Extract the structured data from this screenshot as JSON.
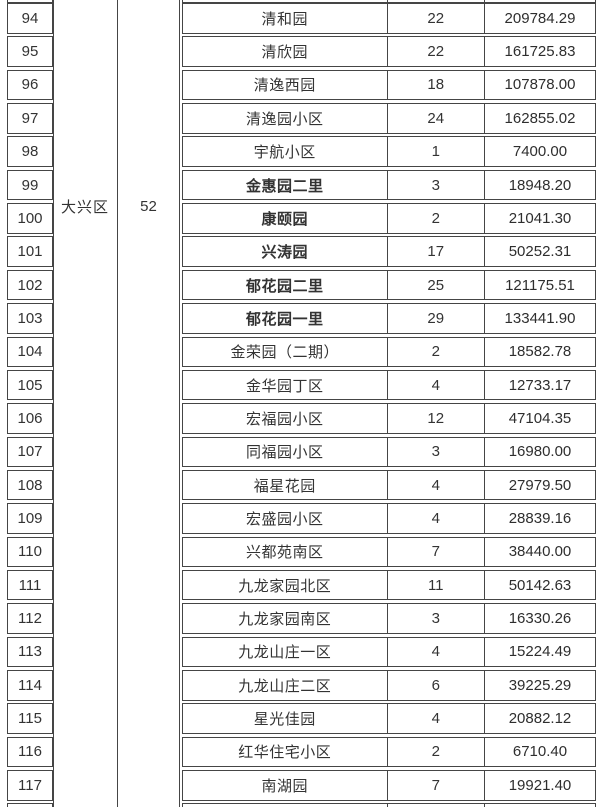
{
  "table": {
    "district_cell": {
      "label": "大兴区"
    },
    "district_count_cell": {
      "value": "52"
    },
    "rows": [
      {
        "no": "94",
        "name": "清和园",
        "count": "22",
        "amount": "209784.29",
        "bold": false
      },
      {
        "no": "95",
        "name": "清欣园",
        "count": "22",
        "amount": "161725.83",
        "bold": false
      },
      {
        "no": "96",
        "name": "清逸西园",
        "count": "18",
        "amount": "107878.00",
        "bold": false
      },
      {
        "no": "97",
        "name": "清逸园小区",
        "count": "24",
        "amount": "162855.02",
        "bold": false
      },
      {
        "no": "98",
        "name": "宇航小区",
        "count": "1",
        "amount": "7400.00",
        "bold": false
      },
      {
        "no": "99",
        "name": "金惠园二里",
        "count": "3",
        "amount": "18948.20",
        "bold": true
      },
      {
        "no": "100",
        "name": "康颐园",
        "count": "2",
        "amount": "21041.30",
        "bold": true
      },
      {
        "no": "101",
        "name": "兴涛园",
        "count": "17",
        "amount": "50252.31",
        "bold": true
      },
      {
        "no": "102",
        "name": "郁花园二里",
        "count": "25",
        "amount": "121175.51",
        "bold": true
      },
      {
        "no": "103",
        "name": "郁花园一里",
        "count": "29",
        "amount": "133441.90",
        "bold": true
      },
      {
        "no": "104",
        "name": "金荣园（二期）",
        "count": "2",
        "amount": "18582.78",
        "bold": false
      },
      {
        "no": "105",
        "name": "金华园丁区",
        "count": "4",
        "amount": "12733.17",
        "bold": false
      },
      {
        "no": "106",
        "name": "宏福园小区",
        "count": "12",
        "amount": "47104.35",
        "bold": false
      },
      {
        "no": "107",
        "name": "同福园小区",
        "count": "3",
        "amount": "16980.00",
        "bold": false
      },
      {
        "no": "108",
        "name": "福星花园",
        "count": "4",
        "amount": "27979.50",
        "bold": false
      },
      {
        "no": "109",
        "name": "宏盛园小区",
        "count": "4",
        "amount": "28839.16",
        "bold": false
      },
      {
        "no": "110",
        "name": "兴都苑南区",
        "count": "7",
        "amount": "38440.00",
        "bold": false
      },
      {
        "no": "111",
        "name": "九龙家园北区",
        "count": "11",
        "amount": "50142.63",
        "bold": false
      },
      {
        "no": "112",
        "name": "九龙家园南区",
        "count": "3",
        "amount": "16330.26",
        "bold": false
      },
      {
        "no": "113",
        "name": "九龙山庄一区",
        "count": "4",
        "amount": "15224.49",
        "bold": false
      },
      {
        "no": "114",
        "name": "九龙山庄二区",
        "count": "6",
        "amount": "39225.29",
        "bold": false
      },
      {
        "no": "115",
        "name": "星光佳园",
        "count": "4",
        "amount": "20882.12",
        "bold": false
      },
      {
        "no": "116",
        "name": "红华住宅小区",
        "count": "2",
        "amount": "6710.40",
        "bold": false
      },
      {
        "no": "117",
        "name": "南湖园",
        "count": "7",
        "amount": "19921.40",
        "bold": false
      }
    ]
  },
  "colors": {
    "border": "#454545",
    "text": "#333333",
    "background": "#ffffff"
  }
}
